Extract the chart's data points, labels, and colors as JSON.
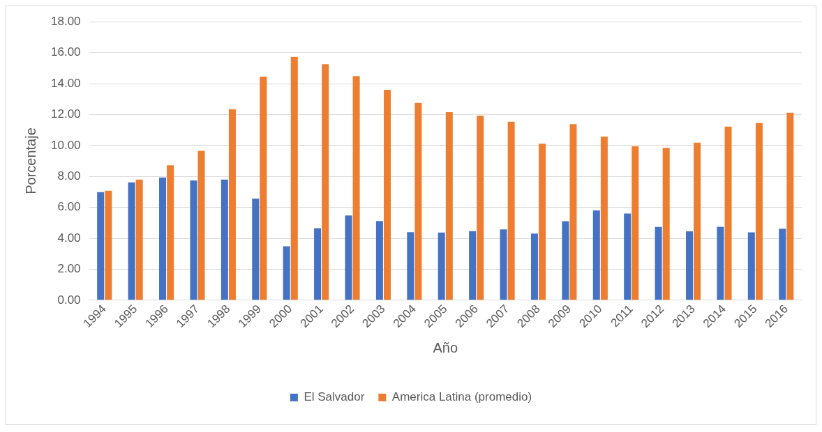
{
  "chart_data": {
    "type": "bar",
    "xlabel": "Año",
    "ylabel": "Porcentaje",
    "categories": [
      "1994",
      "1995",
      "1996",
      "1997",
      "1998",
      "1999",
      "2000",
      "2001",
      "2002",
      "2003",
      "2004",
      "2005",
      "2006",
      "2007",
      "2008",
      "2009",
      "2010",
      "2011",
      "2012",
      "2013",
      "2014",
      "2015",
      "2016"
    ],
    "series": [
      {
        "name": "El Salvador",
        "color": "#4472c4",
        "values": [
          6.98,
          7.62,
          7.93,
          7.74,
          7.8,
          6.57,
          3.48,
          4.65,
          5.48,
          5.12,
          4.4,
          4.37,
          4.46,
          4.57,
          4.3,
          5.1,
          5.8,
          5.6,
          4.73,
          4.45,
          4.75,
          4.38,
          4.62
        ]
      },
      {
        "name": "America Latina (promedio)",
        "color": "#ed7d31",
        "values": [
          7.08,
          7.8,
          8.72,
          9.65,
          12.35,
          14.45,
          15.72,
          15.25,
          14.48,
          13.6,
          12.75,
          12.15,
          11.93,
          11.53,
          10.12,
          11.38,
          10.58,
          9.95,
          9.85,
          10.18,
          11.22,
          11.45,
          12.12
        ]
      }
    ],
    "ylim": [
      0,
      18
    ],
    "yticks": [
      {
        "value": 0,
        "label": "0.00"
      },
      {
        "value": 2,
        "label": "2.00"
      },
      {
        "value": 4,
        "label": "4.00"
      },
      {
        "value": 6,
        "label": "6.00"
      },
      {
        "value": 8,
        "label": "8.00"
      },
      {
        "value": 10,
        "label": "10.00"
      },
      {
        "value": 12,
        "label": "12.00"
      },
      {
        "value": 14,
        "label": "14.00"
      },
      {
        "value": 16,
        "label": "16.00"
      },
      {
        "value": 18,
        "label": "18.00"
      }
    ],
    "grid": "y",
    "legend": "bottom"
  }
}
